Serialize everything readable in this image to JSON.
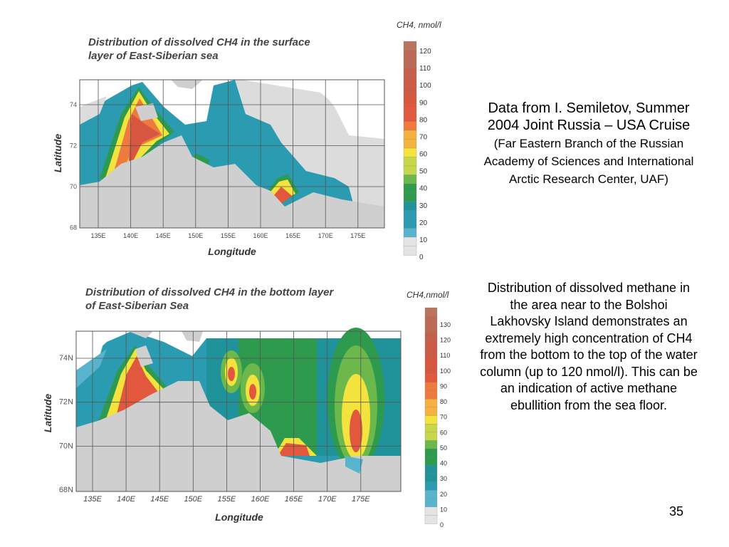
{
  "top_figure": {
    "title_line1": "Distribution of dissolved CH4 in the surface",
    "title_line2": "layer of East-Siberian sea",
    "colorbar_title": "CH4, nmol/l",
    "colorbar_labels": [
      "120",
      "110",
      "100",
      "90",
      "80",
      "70",
      "60",
      "50",
      "40",
      "30",
      "20",
      "10",
      "0"
    ],
    "lat_ticks": [
      "74",
      "72",
      "70",
      "68"
    ],
    "lon_ticks": [
      "135E",
      "140E",
      "145E",
      "150E",
      "155E",
      "160E",
      "165E",
      "170E",
      "175E"
    ],
    "ylabel": "Latitude",
    "xlabel": "Longitude"
  },
  "bottom_figure": {
    "title_line1": "Distribution of dissolved CH4 in the bottom layer",
    "title_line2": "of East-Siberian Sea",
    "colorbar_title": "CH4,nmol/l",
    "colorbar_labels": [
      "130",
      "120",
      "110",
      "100",
      "90",
      "80",
      "70",
      "60",
      "50",
      "40",
      "30",
      "20",
      "10",
      "0"
    ],
    "lat_ticks": [
      "74N",
      "72N",
      "70N",
      "68N"
    ],
    "lon_ticks": [
      "135E",
      "140E",
      "145E",
      "150E",
      "155E",
      "160E",
      "165E",
      "170E",
      "175E"
    ],
    "ylabel": "Latitude",
    "xlabel": "Longitude"
  },
  "colors": {
    "land": "#cfcfcf",
    "scale": [
      "#e4e4e4",
      "#58b4cc",
      "#2a9bb0",
      "#20939a",
      "#2e9a4e",
      "#6cb84a",
      "#c6d84a",
      "#f3e33c",
      "#f6b23e",
      "#ee7a3e",
      "#e2583e",
      "#d6563f",
      "#cc5a44",
      "#c4604c",
      "#bc6a56",
      "#b8745e"
    ]
  },
  "side_text": {
    "para1_main": "Data from I. Semiletov, Summer 2004 Joint Russia – USA Cruise",
    "para1_small": " (Far Eastern Branch of the Russian Academy of Sciences and International Arctic Research Center, UAF)",
    "para2": "Distribution of dissolved methane in the area near to the Bolshoi Lakhovsky Island demonstrates an extremely high concentration of CH4 from the bottom to the top of the water column (up to 120 nmol/l). This can be an indication of active methane ebullition from the sea floor."
  },
  "page_number": "35"
}
